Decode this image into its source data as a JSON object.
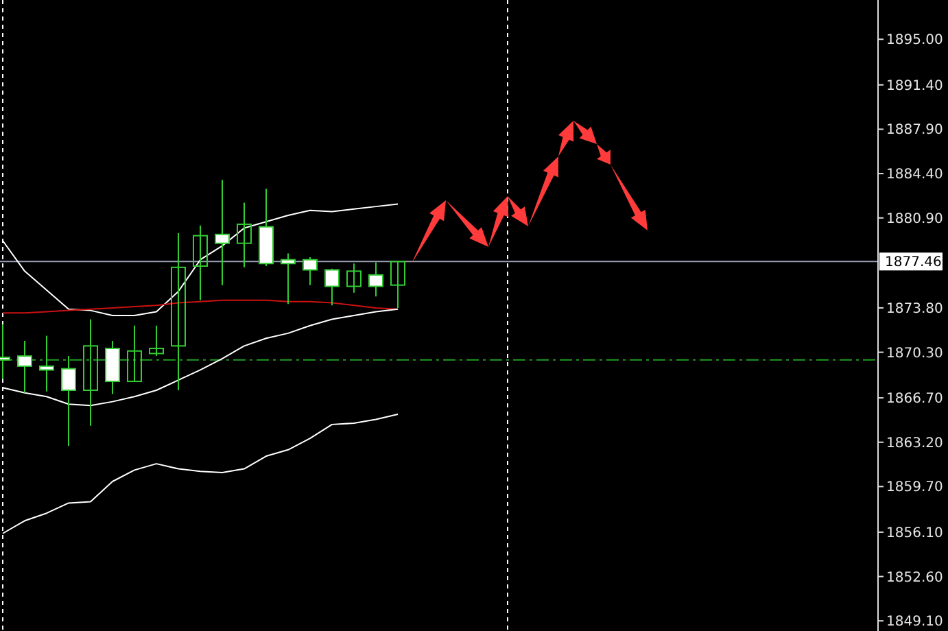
{
  "chart_data": {
    "type": "candlestick",
    "color": "#33cc33",
    "categories": [
      null,
      null,
      null,
      null,
      null,
      null,
      null,
      null,
      null,
      null,
      null,
      null,
      null,
      null,
      null,
      null,
      null,
      null,
      null,
      null,
      null,
      null,
      null,
      null,
      null,
      null,
      null,
      null,
      null,
      null,
      null,
      null,
      null,
      null,
      null,
      null,
      null,
      null,
      null,
      null
    ],
    "ohlc": [
      [
        1869.9,
        1872.5,
        1868.2,
        1869.7
      ],
      [
        1870.0,
        1871.2,
        1867.1,
        1869.2
      ],
      [
        1869.2,
        1871.6,
        1867.2,
        1868.9
      ],
      [
        1869.0,
        1870.0,
        1862.9,
        1867.3
      ],
      [
        1867.3,
        1872.9,
        1864.5,
        1870.8
      ],
      [
        1870.6,
        1871.2,
        1867.0,
        1868.0
      ],
      [
        1868.0,
        1872.4,
        1868.0,
        1870.4
      ],
      [
        1870.2,
        1872.4,
        1870.0,
        1870.6
      ],
      [
        1870.8,
        1879.7,
        1867.3,
        1877.0
      ],
      [
        1877.1,
        1880.3,
        1874.4,
        1879.5
      ],
      [
        1879.6,
        1883.9,
        1875.6,
        1878.9
      ],
      [
        1878.9,
        1882.1,
        1877.0,
        1880.4
      ],
      [
        1880.2,
        1883.2,
        1877.1,
        1877.3
      ],
      [
        1877.6,
        1878.1,
        1874.1,
        1877.3
      ],
      [
        1877.6,
        1877.8,
        1875.6,
        1876.8
      ],
      [
        1876.8,
        1876.9,
        1874.0,
        1875.5
      ],
      [
        1875.5,
        1877.3,
        1875.0,
        1876.7
      ],
      [
        1876.4,
        1877.4,
        1874.7,
        1875.5
      ],
      [
        1875.6,
        1877.5,
        1873.8,
        1877.46
      ],
      null,
      null,
      null,
      null,
      null,
      null,
      null,
      null,
      null,
      null,
      null,
      null,
      null,
      null,
      null,
      null,
      null,
      null,
      null,
      null,
      null
    ],
    "series": [
      {
        "type": "line",
        "color": "#ffffff",
        "values": [
          1879.1,
          1876.7,
          1875.2,
          1873.7,
          1873.6,
          1873.2,
          1873.2,
          1873.5,
          1875.1,
          1877.6,
          1878.7,
          1880.1,
          1880.6,
          1881.1,
          1881.5,
          1881.4,
          1881.6,
          1881.8,
          1882.0,
          null,
          null,
          null,
          null,
          null,
          null,
          null,
          null,
          null,
          null,
          null,
          null,
          null,
          null,
          null,
          null,
          null,
          null,
          null,
          null,
          null
        ]
      },
      {
        "type": "line",
        "color": "#cc1111",
        "values": [
          1873.4,
          1873.4,
          1873.5,
          1873.6,
          1873.7,
          1873.8,
          1873.9,
          1874.0,
          1874.2,
          1874.3,
          1874.4,
          1874.4,
          1874.4,
          1874.3,
          1874.3,
          1874.2,
          1874.0,
          1873.8,
          1873.7,
          null,
          null,
          null,
          null,
          null,
          null,
          null,
          null,
          null,
          null,
          null,
          null,
          null,
          null,
          null,
          null,
          null,
          null,
          null,
          null,
          null
        ]
      },
      {
        "type": "line",
        "color": "#ffffff",
        "values": [
          1867.5,
          1867.1,
          1866.8,
          1866.2,
          1866.1,
          1866.4,
          1866.8,
          1867.3,
          1868.1,
          1868.9,
          1869.8,
          1870.8,
          1871.4,
          1871.8,
          1872.4,
          1872.9,
          1873.2,
          1873.5,
          1873.7,
          null,
          null,
          null,
          null,
          null,
          null,
          null,
          null,
          null,
          null,
          null,
          null,
          null,
          null,
          null,
          null,
          null,
          null,
          null,
          null,
          null
        ]
      },
      {
        "type": "line",
        "color": "#ffffff",
        "values": [
          1856.0,
          1857.0,
          1857.6,
          1858.4,
          1858.5,
          1860.1,
          1861.0,
          1861.5,
          1861.1,
          1860.9,
          1860.8,
          1861.1,
          1862.1,
          1862.6,
          1863.5,
          1864.6,
          1864.7,
          1865.0,
          1865.4,
          null,
          null,
          null,
          null,
          null,
          null,
          null,
          null,
          null,
          null,
          null,
          null,
          null,
          null,
          null,
          null,
          null,
          null,
          null,
          null,
          null
        ]
      }
    ],
    "ylim": [
      1848.3,
      1898.1
    ],
    "yticks": [
      {
        "value": 1895.0,
        "label": "1895.00"
      },
      {
        "value": 1891.4,
        "label": "1891.40"
      },
      {
        "value": 1887.9,
        "label": "1887.90"
      },
      {
        "value": 1884.4,
        "label": "1884.40"
      },
      {
        "value": 1880.9,
        "label": "1880.90"
      },
      {
        "value": 1873.8,
        "label": "1873.80"
      },
      {
        "value": 1870.3,
        "label": "1870.30"
      },
      {
        "value": 1866.7,
        "label": "1866.70"
      },
      {
        "value": 1863.2,
        "label": "1863.20"
      },
      {
        "value": 1859.7,
        "label": "1859.70"
      },
      {
        "value": 1856.1,
        "label": "1856.10"
      },
      {
        "value": 1852.6,
        "label": "1852.60"
      },
      {
        "value": 1849.1,
        "label": "1849.10"
      }
    ],
    "tick_labels": "y",
    "grid": false,
    "ref_lines": [
      {
        "axis": "y",
        "value": 1877.46,
        "label": "1877.46",
        "color": "#9aa0b4",
        "line_style": "solid"
      },
      {
        "axis": "y",
        "value": 1869.7,
        "color": "#1f9e1f",
        "line_style": "dashed"
      }
    ]
  }
}
